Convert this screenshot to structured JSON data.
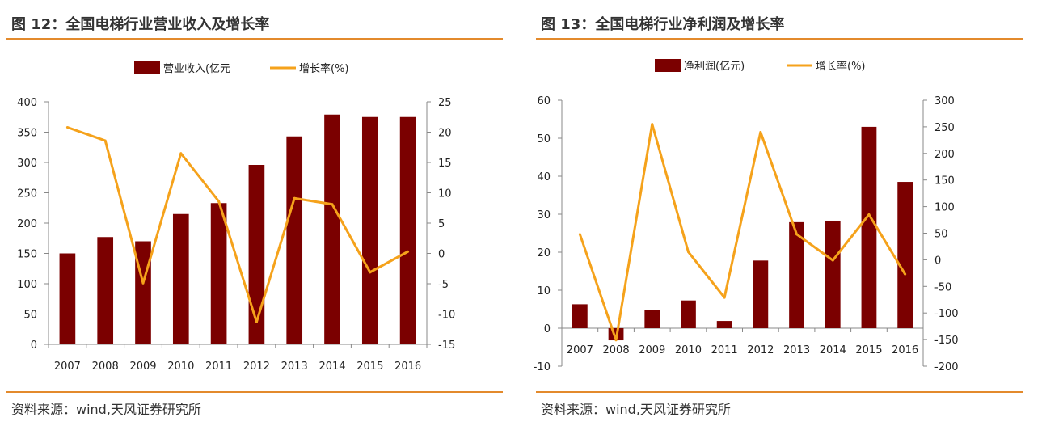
{
  "colors": {
    "bar": "#7b0000",
    "line": "#f5a21b",
    "rule": "#e38a2c"
  },
  "charts": [
    {
      "title": "图 12：全国电梯行业营业收入及增长率",
      "source": "资料来源：wind,天风证券研究所",
      "chart_data": {
        "type": "bar",
        "categories": [
          "2007",
          "2008",
          "2009",
          "2010",
          "2011",
          "2012",
          "2013",
          "2014",
          "2015",
          "2016"
        ],
        "series": [
          {
            "name": "营业收入(亿元",
            "kind": "bar",
            "axis": "left",
            "values": [
              150,
              177,
              170,
              215,
              233,
              296,
              343,
              379,
              375,
              375
            ]
          },
          {
            "name": "增长率(%)",
            "kind": "line",
            "axis": "right",
            "values": [
              20.8,
              18.6,
              -4.9,
              16.5,
              8.6,
              -11.3,
              9.1,
              8.1,
              -3.1,
              0.3
            ]
          }
        ],
        "ylim_left": [
          0,
          400
        ],
        "yticks_left": [
          0,
          50,
          100,
          150,
          200,
          250,
          300,
          350,
          400
        ],
        "ylim_right": [
          -15,
          25
        ],
        "yticks_right": [
          -15,
          -10,
          -5,
          0,
          5,
          10,
          15,
          20,
          25
        ],
        "legend": "top-center",
        "grid": false
      }
    },
    {
      "title": "图 13：全国电梯行业净利润及增长率",
      "source": "资料来源：wind,天风证券研究所",
      "chart_data": {
        "type": "bar",
        "categories": [
          "2007",
          "2008",
          "2009",
          "2010",
          "2011",
          "2012",
          "2013",
          "2014",
          "2015",
          "2016"
        ],
        "series": [
          {
            "name": "净利润(亿元)",
            "kind": "bar",
            "axis": "left",
            "values": [
              6.3,
              -3.2,
              4.8,
              7.3,
              1.9,
              17.8,
              27.9,
              28.3,
              53.0,
              38.5
            ]
          },
          {
            "name": "增长率(%)",
            "kind": "line",
            "axis": "right",
            "values": [
              48,
              -151,
              255,
              15,
              -71,
              240,
              48,
              -1,
              85,
              -27
            ]
          }
        ],
        "ylim_left": [
          -10,
          60
        ],
        "yticks_left": [
          -10,
          0,
          10,
          20,
          30,
          40,
          50,
          60
        ],
        "ylim_right": [
          -200,
          300
        ],
        "yticks_right": [
          -200,
          -150,
          -100,
          -50,
          0,
          50,
          100,
          150,
          200,
          250,
          300
        ],
        "legend": "top-center",
        "grid": false
      }
    }
  ]
}
